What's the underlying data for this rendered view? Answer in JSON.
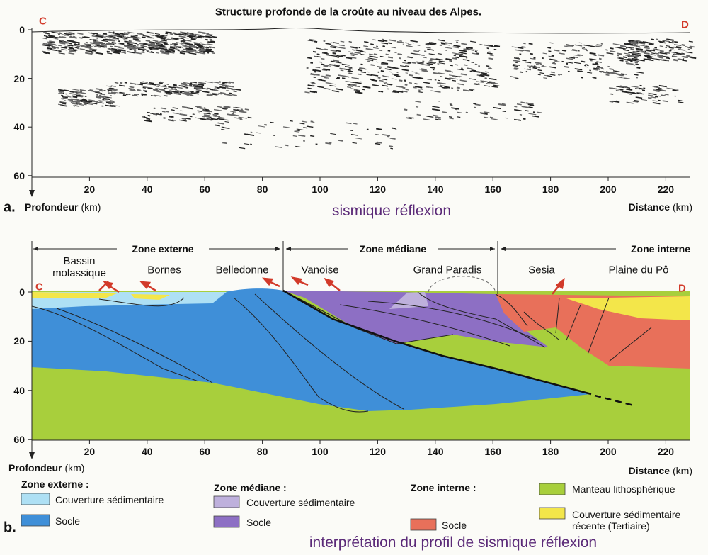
{
  "panel_a": {
    "label": "a.",
    "title": "Structure profonde de la croûte au niveau des Alpes.",
    "point_start": "C",
    "point_end": "D",
    "depth_axis_label": "Profondeur",
    "depth_axis_unit": "(km)",
    "distance_axis_label": "Distance",
    "distance_axis_unit": "(km)",
    "depth_ticks": [
      0,
      20,
      40,
      60
    ],
    "distance_ticks": [
      20,
      40,
      60,
      80,
      100,
      120,
      140,
      160,
      180,
      200,
      220
    ],
    "caption": "sismique réflexion"
  },
  "panel_b": {
    "label": "b.",
    "zones": [
      "Zone externe",
      "Zone médiane",
      "Zone interne"
    ],
    "places": [
      "Bassin molassique",
      "Bornes",
      "Belledonne",
      "Vanoise",
      "Grand Paradis",
      "Sesia",
      "Plaine du Pô"
    ],
    "point_start": "C",
    "point_end": "D",
    "depth_axis_label": "Profondeur",
    "depth_axis_unit": "(km)",
    "distance_axis_label": "Distance",
    "distance_axis_unit": "(km)",
    "depth_ticks": [
      0,
      20,
      40,
      60
    ],
    "distance_ticks": [
      20,
      40,
      60,
      80,
      100,
      120,
      140,
      160,
      180,
      200,
      220
    ],
    "legend": {
      "groups": [
        {
          "title": "Zone externe :",
          "items": [
            "Couverture sédimentaire",
            "Socle"
          ]
        },
        {
          "title": "Zone médiane :",
          "items": [
            "Couverture sédimentaire",
            "Socle"
          ]
        },
        {
          "title": "Zone interne :",
          "items": [
            "Socle"
          ]
        }
      ],
      "other_items": [
        "Manteau lithosphérique",
        "Couverture sédimentaire récente (Tertiaire)"
      ]
    },
    "caption": "interprétation du profil de sismique réflexion"
  }
}
